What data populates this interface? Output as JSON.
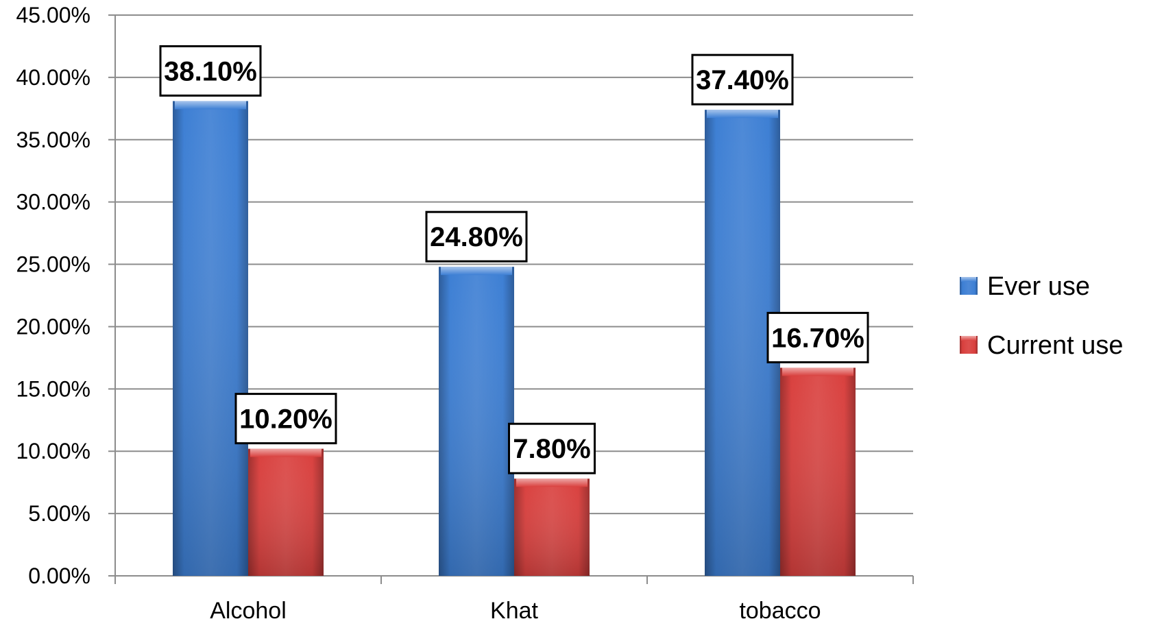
{
  "chart_data": {
    "type": "bar",
    "title": "",
    "xlabel": "",
    "ylabel": "",
    "categories": [
      "Alcohol",
      "Khat",
      "tobacco"
    ],
    "series": [
      {
        "name": "Ever use",
        "values": [
          38.1,
          24.8,
          37.4
        ],
        "labels": [
          "38.10%",
          "24.80%",
          "37.40%"
        ],
        "color": "#3d7fd4"
      },
      {
        "name": "Current use",
        "values": [
          10.2,
          7.8,
          16.7
        ],
        "labels": [
          "10.20%",
          "7.80%",
          "16.70%"
        ],
        "color": "#d9403e"
      }
    ],
    "ylim": [
      0,
      45
    ],
    "yticks": [
      0,
      5,
      10,
      15,
      20,
      25,
      30,
      35,
      40,
      45
    ],
    "ytick_labels": [
      "0.00%",
      "5.00%",
      "10.00%",
      "15.00%",
      "20.00%",
      "25.00%",
      "30.00%",
      "35.00%",
      "40.00%",
      "45.00%"
    ],
    "grid": true,
    "legend_position": "right"
  }
}
